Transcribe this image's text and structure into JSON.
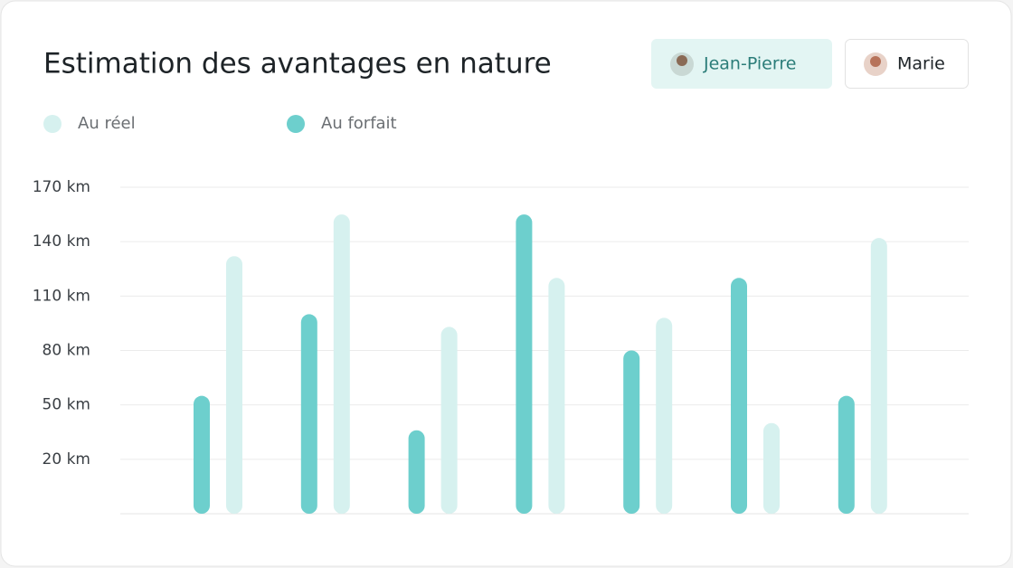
{
  "chart_data": {
    "type": "bar",
    "title": "Estimation des avantages en nature",
    "categories": [
      null,
      null,
      null,
      null,
      null,
      null,
      null
    ],
    "series": [
      {
        "name": "Au réel",
        "color": "#d6f1ef",
        "values": [
          132,
          155,
          93,
          120,
          98,
          40,
          142
        ]
      },
      {
        "name": "Au forfait",
        "color": "#6dcfcd",
        "values": [
          55,
          100,
          36,
          155,
          80,
          120,
          55
        ]
      }
    ],
    "ylim": [
      -10,
      170
    ],
    "yticks": [
      {
        "value": 20,
        "label": "20 km"
      },
      {
        "value": 50,
        "label": "50 km"
      },
      {
        "value": 80,
        "label": "80 km"
      },
      {
        "value": 110,
        "label": "110 km"
      },
      {
        "value": 140,
        "label": "140 km"
      },
      {
        "value": 170,
        "label": "170 km"
      }
    ],
    "grid": true
  },
  "people": [
    "Jean-Pierre",
    "Marie"
  ]
}
